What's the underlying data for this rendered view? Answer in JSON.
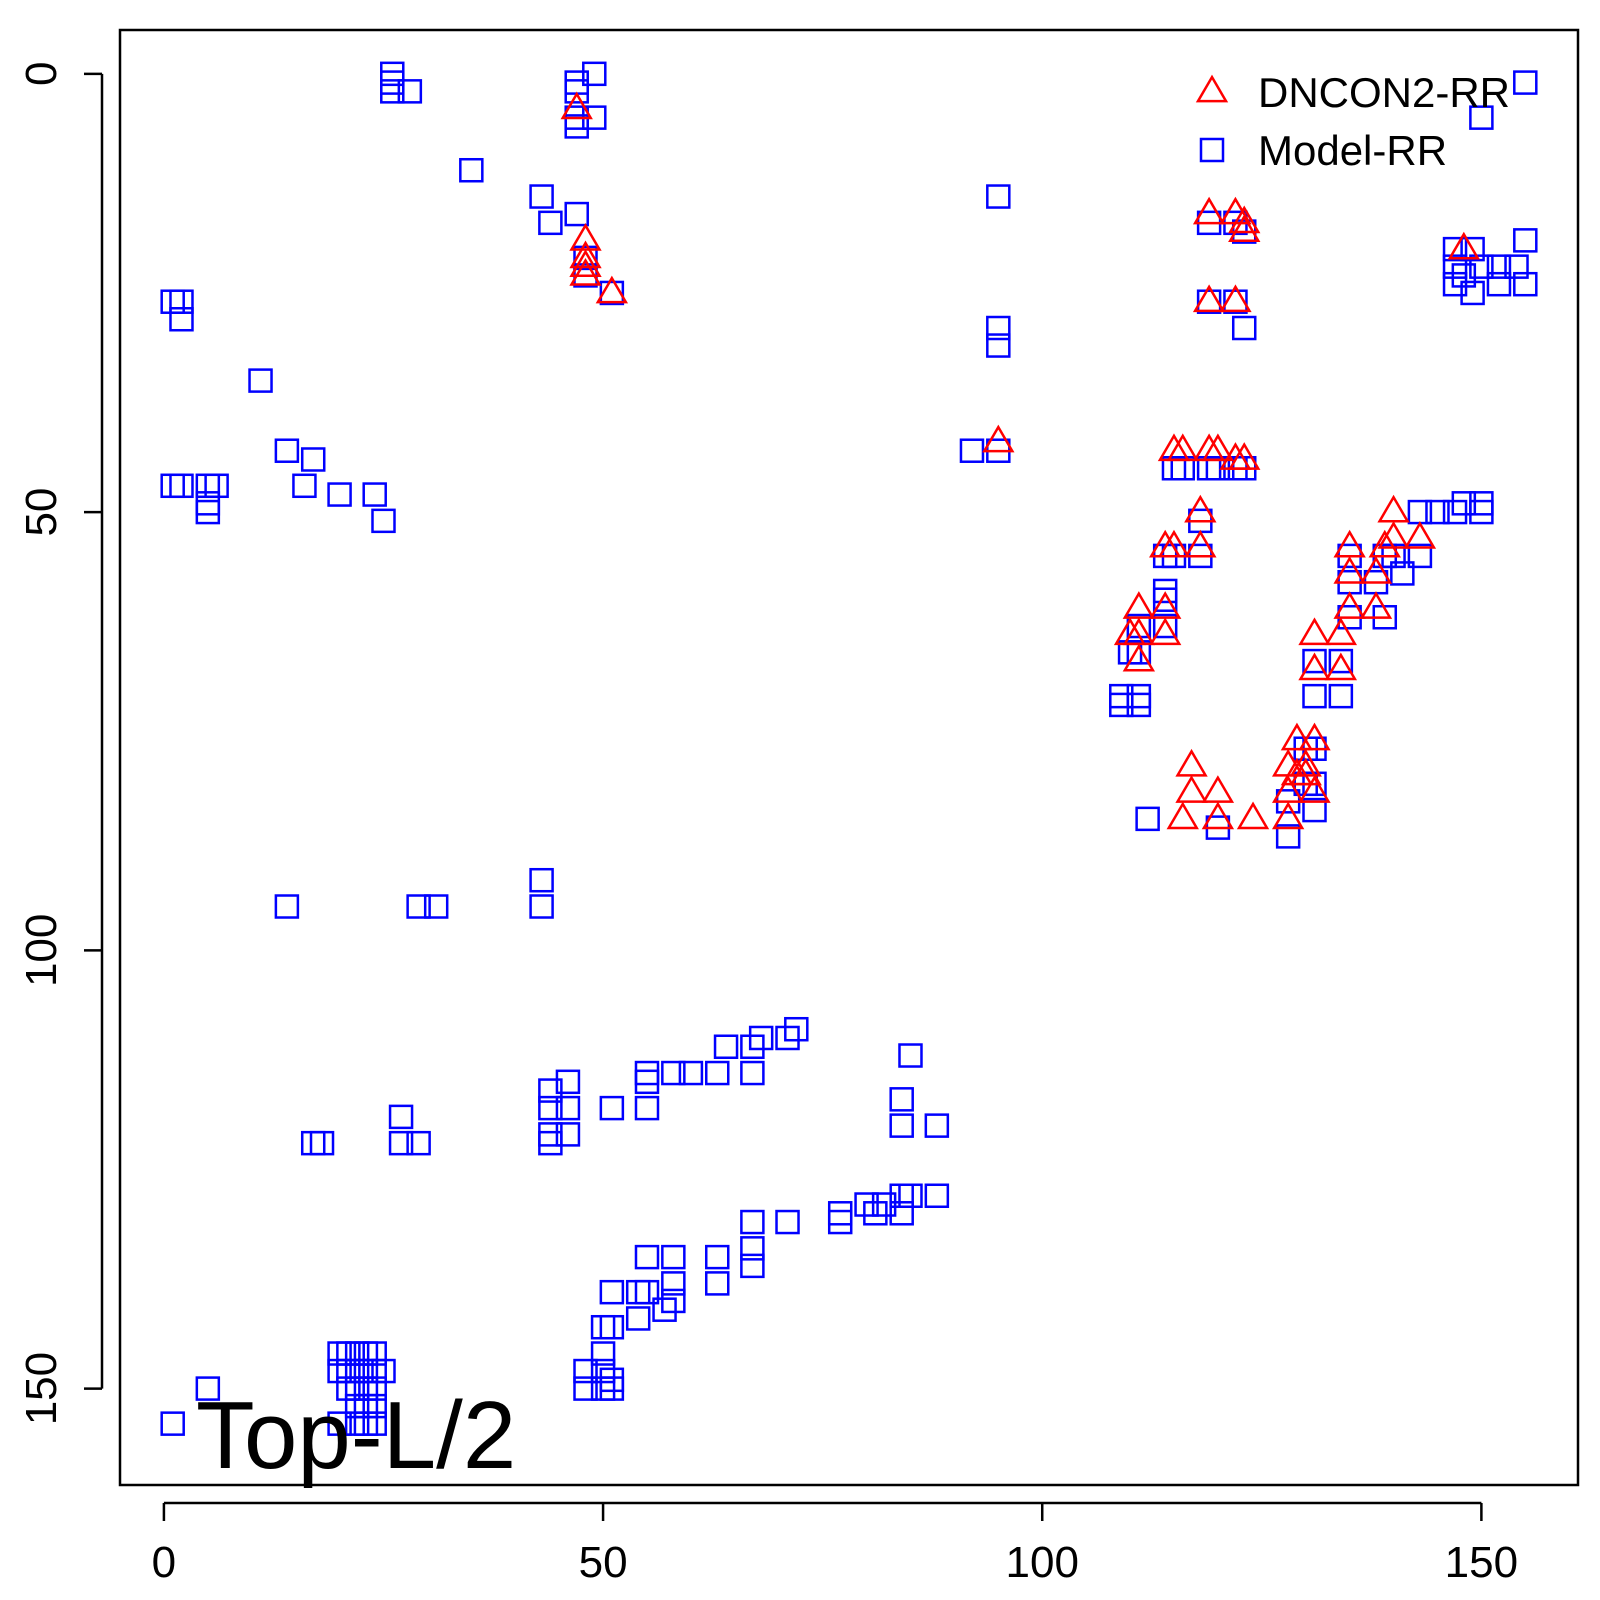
{
  "chart_data": {
    "type": "scatter",
    "title": "",
    "xlabel": "",
    "ylabel": "",
    "xlim": [
      -5,
      161
    ],
    "ylim": [
      -5,
      161
    ],
    "y_inverted": true,
    "x_ticks": [
      "0",
      "50",
      "100",
      "150"
    ],
    "y_ticks": [
      "0",
      "50",
      "100",
      "150"
    ],
    "grid": false,
    "legend_position": "top-right",
    "annotation": "Top-L/2",
    "series": [
      {
        "name": "DNCON2-RR",
        "marker": "triangle",
        "color": "#ff0000",
        "points": [
          [
            47,
            4
          ],
          [
            48,
            19
          ],
          [
            48,
            21
          ],
          [
            48,
            22
          ],
          [
            48,
            23
          ],
          [
            51,
            25
          ],
          [
            119,
            16
          ],
          [
            122,
            16
          ],
          [
            123,
            17
          ],
          [
            123,
            18
          ],
          [
            119,
            26
          ],
          [
            122,
            26
          ],
          [
            95,
            42
          ],
          [
            115,
            43
          ],
          [
            116,
            43
          ],
          [
            119,
            43
          ],
          [
            120,
            43
          ],
          [
            122,
            44
          ],
          [
            123,
            44
          ],
          [
            118,
            50
          ],
          [
            114,
            54
          ],
          [
            115,
            54
          ],
          [
            118,
            54
          ],
          [
            111,
            61
          ],
          [
            114,
            61
          ],
          [
            110,
            64
          ],
          [
            111,
            64
          ],
          [
            114,
            64
          ],
          [
            111,
            67
          ],
          [
            117,
            79
          ],
          [
            117,
            82
          ],
          [
            120,
            82
          ],
          [
            116,
            85
          ],
          [
            120,
            85
          ],
          [
            124,
            85
          ],
          [
            135,
            54
          ],
          [
            139,
            54
          ],
          [
            135,
            57
          ],
          [
            138,
            57
          ],
          [
            135,
            61
          ],
          [
            138,
            61
          ],
          [
            131,
            64
          ],
          [
            134,
            64
          ],
          [
            131,
            68
          ],
          [
            134,
            68
          ],
          [
            129,
            76
          ],
          [
            131,
            76
          ],
          [
            128,
            79
          ],
          [
            130,
            79
          ],
          [
            129,
            80
          ],
          [
            130,
            80
          ],
          [
            128,
            82
          ],
          [
            131,
            82
          ],
          [
            128,
            85
          ],
          [
            140,
            50
          ],
          [
            140,
            53
          ],
          [
            143,
            53
          ],
          [
            148,
            20
          ]
        ]
      },
      {
        "name": "Model-RR",
        "marker": "square",
        "color": "#0000ff",
        "points": [
          [
            26,
            1
          ],
          [
            26,
            2
          ],
          [
            28,
            2
          ],
          [
            47,
            1
          ],
          [
            47,
            2
          ],
          [
            47,
            5
          ],
          [
            49,
            5
          ],
          [
            47,
            6
          ],
          [
            35,
            11
          ],
          [
            43,
            14
          ],
          [
            44,
            17
          ],
          [
            47,
            16
          ],
          [
            95,
            14
          ],
          [
            155,
            1
          ],
          [
            150,
            5
          ],
          [
            1,
            26
          ],
          [
            2,
            26
          ],
          [
            2,
            28
          ],
          [
            11,
            35
          ],
          [
            14,
            43
          ],
          [
            17,
            44
          ],
          [
            1,
            47
          ],
          [
            2,
            47
          ],
          [
            5,
            47
          ],
          [
            6,
            47
          ],
          [
            5,
            49
          ],
          [
            5,
            50
          ],
          [
            16,
            47
          ],
          [
            20,
            48
          ],
          [
            24,
            48
          ],
          [
            25,
            51
          ],
          [
            48,
            21
          ],
          [
            48,
            23
          ],
          [
            51,
            25
          ],
          [
            92,
            43
          ],
          [
            95,
            43
          ],
          [
            95,
            29
          ],
          [
            95,
            31
          ],
          [
            119,
            17
          ],
          [
            122,
            17
          ],
          [
            123,
            18
          ],
          [
            119,
            26
          ],
          [
            122,
            26
          ],
          [
            123,
            29
          ],
          [
            115,
            45
          ],
          [
            116,
            45
          ],
          [
            119,
            45
          ],
          [
            120,
            45
          ],
          [
            122,
            45
          ],
          [
            123,
            45
          ],
          [
            118,
            51
          ],
          [
            114,
            55
          ],
          [
            115,
            55
          ],
          [
            118,
            55
          ],
          [
            114,
            59
          ],
          [
            114,
            60
          ],
          [
            114,
            63
          ],
          [
            111,
            63
          ],
          [
            111,
            66
          ],
          [
            110,
            66
          ],
          [
            109,
            71
          ],
          [
            109,
            72
          ],
          [
            111,
            71
          ],
          [
            111,
            72
          ],
          [
            112,
            85
          ],
          [
            120,
            86
          ],
          [
            135,
            55
          ],
          [
            139,
            55
          ],
          [
            135,
            58
          ],
          [
            138,
            58
          ],
          [
            135,
            62
          ],
          [
            139,
            62
          ],
          [
            131,
            67
          ],
          [
            134,
            67
          ],
          [
            131,
            71
          ],
          [
            134,
            71
          ],
          [
            130,
            77
          ],
          [
            131,
            77
          ],
          [
            130,
            81
          ],
          [
            131,
            81
          ],
          [
            128,
            83
          ],
          [
            131,
            84
          ],
          [
            128,
            87
          ],
          [
            140,
            55
          ],
          [
            143,
            55
          ],
          [
            141,
            57
          ],
          [
            143,
            50
          ],
          [
            145,
            50
          ],
          [
            147,
            50
          ],
          [
            148,
            49
          ],
          [
            150,
            49
          ],
          [
            150,
            50
          ],
          [
            147,
            20
          ],
          [
            149,
            20
          ],
          [
            147,
            22
          ],
          [
            148,
            23
          ],
          [
            150,
            22
          ],
          [
            152,
            22
          ],
          [
            154,
            22
          ],
          [
            155,
            19
          ],
          [
            147,
            24
          ],
          [
            149,
            25
          ],
          [
            155,
            24
          ],
          [
            152,
            24
          ],
          [
            26,
            0
          ],
          [
            49,
            0
          ],
          [
            14,
            95
          ],
          [
            29,
            95
          ],
          [
            31,
            95
          ],
          [
            43,
            92
          ],
          [
            43,
            95
          ],
          [
            27,
            119
          ],
          [
            27,
            122
          ],
          [
            17,
            122
          ],
          [
            18,
            122
          ],
          [
            29,
            122
          ],
          [
            44,
            116
          ],
          [
            44,
            118
          ],
          [
            44,
            121
          ],
          [
            44,
            122
          ],
          [
            46,
            115
          ],
          [
            46,
            118
          ],
          [
            46,
            121
          ],
          [
            51,
            118
          ],
          [
            55,
            114
          ],
          [
            55,
            115
          ],
          [
            55,
            118
          ],
          [
            58,
            114
          ],
          [
            60,
            114
          ],
          [
            63,
            114
          ],
          [
            64,
            111
          ],
          [
            67,
            114
          ],
          [
            67,
            111
          ],
          [
            68,
            110
          ],
          [
            71,
            110
          ],
          [
            72,
            109
          ],
          [
            85,
            112
          ],
          [
            84,
            117
          ],
          [
            84,
            120
          ],
          [
            88,
            120
          ],
          [
            67,
            131
          ],
          [
            71,
            131
          ],
          [
            77,
            130
          ],
          [
            77,
            131
          ],
          [
            80,
            129
          ],
          [
            81,
            130
          ],
          [
            82,
            129
          ],
          [
            84,
            128
          ],
          [
            84,
            130
          ],
          [
            85,
            128
          ],
          [
            88,
            128
          ],
          [
            55,
            135
          ],
          [
            58,
            135
          ],
          [
            58,
            138
          ],
          [
            58,
            140
          ],
          [
            63,
            135
          ],
          [
            63,
            138
          ],
          [
            67,
            134
          ],
          [
            67,
            136
          ],
          [
            51,
            139
          ],
          [
            54,
            139
          ],
          [
            55,
            139
          ],
          [
            54,
            142
          ],
          [
            57,
            141
          ],
          [
            51,
            143
          ],
          [
            50,
            143
          ],
          [
            50,
            146
          ],
          [
            50,
            148
          ],
          [
            51,
            149
          ],
          [
            48,
            148
          ],
          [
            48,
            150
          ],
          [
            50,
            150
          ],
          [
            51,
            150
          ],
          [
            20,
            146
          ],
          [
            21,
            146
          ],
          [
            22,
            146
          ],
          [
            23,
            146
          ],
          [
            24,
            146
          ],
          [
            20,
            148
          ],
          [
            21,
            148
          ],
          [
            22,
            148
          ],
          [
            23,
            148
          ],
          [
            24,
            148
          ],
          [
            25,
            148
          ],
          [
            21,
            150
          ],
          [
            22,
            150
          ],
          [
            23,
            150
          ],
          [
            24,
            150
          ],
          [
            22,
            152
          ],
          [
            23,
            152
          ],
          [
            24,
            152
          ],
          [
            22,
            154
          ],
          [
            23,
            154
          ],
          [
            20,
            154
          ],
          [
            24,
            154
          ],
          [
            5,
            150
          ],
          [
            1,
            154
          ]
        ]
      }
    ]
  }
}
